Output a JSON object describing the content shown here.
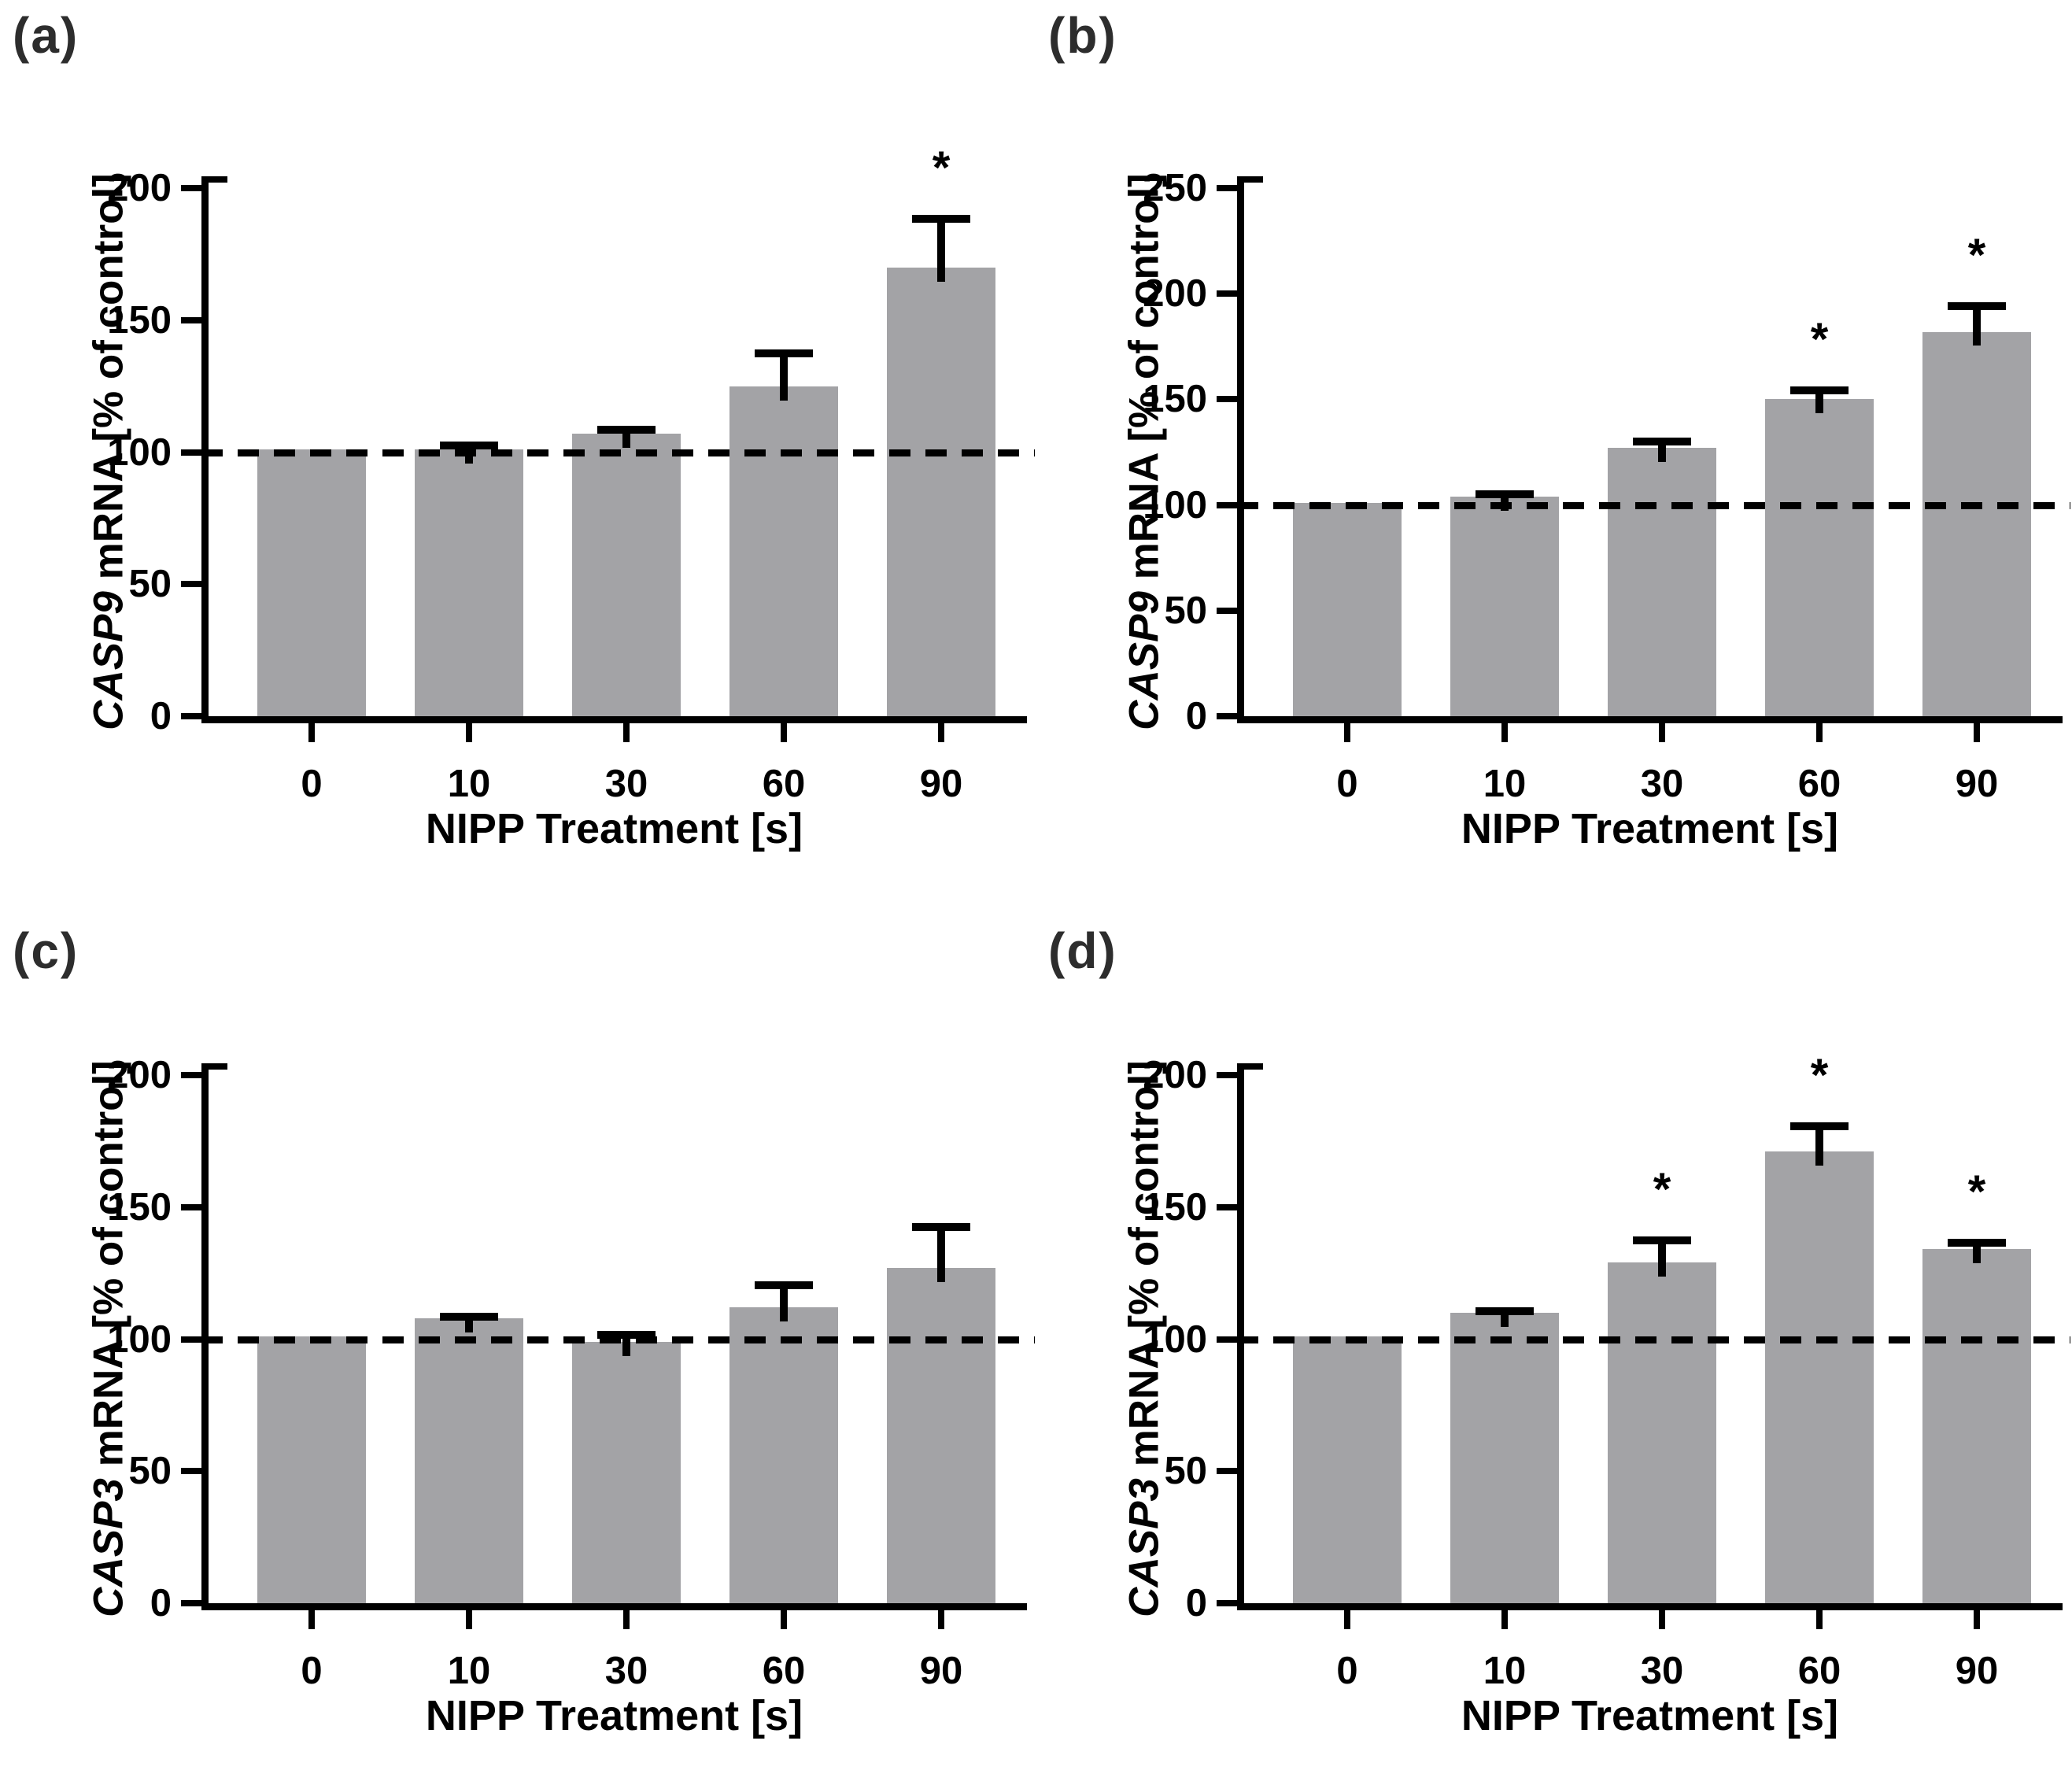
{
  "figure": {
    "background_color": "#ffffff",
    "bar_color": "#a3a3a6",
    "axis_color": "#000000",
    "panel_label_color": "#2d2d2d",
    "sig_symbol": "*"
  },
  "chart_data": [
    {
      "type": "bar",
      "panel_label": "(a)",
      "ylabel_gene": "CASP9",
      "ylabel_rest": " mRNA [% of control]",
      "xlabel": "NIPP Treatment [s]",
      "categories": [
        "0",
        "10",
        "30",
        "60",
        "90"
      ],
      "values": [
        101,
        101,
        107,
        125,
        170
      ],
      "errors": [
        0,
        3,
        3,
        14,
        20
      ],
      "significant": [
        false,
        false,
        false,
        false,
        true
      ],
      "baseline": 100,
      "ylim": [
        0,
        200
      ],
      "yticks": [
        0,
        50,
        100,
        150,
        200
      ],
      "grid": false,
      "legend": "none"
    },
    {
      "type": "bar",
      "panel_label": "(b)",
      "ylabel_gene": "CASP9",
      "ylabel_rest": " mRNA [% of control]",
      "xlabel": "NIPP Treatment [s]",
      "categories": [
        "0",
        "10",
        "30",
        "60",
        "90"
      ],
      "values": [
        101,
        104,
        127,
        150,
        182
      ],
      "errors": [
        0,
        3,
        5,
        6,
        14
      ],
      "significant": [
        false,
        false,
        false,
        true,
        true
      ],
      "baseline": 100,
      "ylim": [
        0,
        250
      ],
      "yticks": [
        0,
        50,
        100,
        150,
        200,
        250
      ],
      "grid": false,
      "legend": "none"
    },
    {
      "type": "bar",
      "panel_label": "(c)",
      "ylabel_gene": "CASP3",
      "ylabel_rest": " mRNA [% of control]",
      "xlabel": "NIPP Treatment [s]",
      "categories": [
        "0",
        "10",
        "30",
        "60",
        "90"
      ],
      "values": [
        101,
        108,
        99,
        112,
        127
      ],
      "errors": [
        0,
        2,
        4,
        10,
        17
      ],
      "significant": [
        false,
        false,
        false,
        false,
        false
      ],
      "baseline": 100,
      "ylim": [
        0,
        200
      ],
      "yticks": [
        0,
        50,
        100,
        150,
        200
      ],
      "grid": false,
      "legend": "none"
    },
    {
      "type": "bar",
      "panel_label": "(d)",
      "ylabel_gene": "CASP3",
      "ylabel_rest": " mRNA [% of control]",
      "xlabel": "NIPP Treatment [s]",
      "categories": [
        "0",
        "10",
        "30",
        "60",
        "90"
      ],
      "values": [
        101,
        110,
        129,
        171,
        134
      ],
      "errors": [
        0,
        2,
        10,
        11,
        4
      ],
      "significant": [
        false,
        false,
        true,
        true,
        true
      ],
      "baseline": 100,
      "ylim": [
        0,
        200
      ],
      "yticks": [
        0,
        50,
        100,
        150,
        200
      ],
      "grid": false,
      "legend": "none"
    }
  ]
}
